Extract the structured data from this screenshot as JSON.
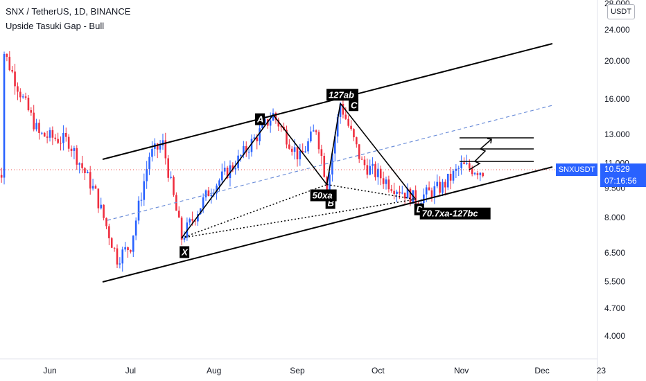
{
  "header": {
    "symbol_line": "SNX / TetherUS, 1D, BINANCE",
    "indicator_line": "Upside Tasuki Gap - Bull"
  },
  "currency_button": "USDT",
  "last_price": {
    "symbol": "SNXUSDT",
    "price": "10.529",
    "countdown": "07:16:56"
  },
  "colors": {
    "up": "#2962ff",
    "down": "#ef2e3f",
    "drawing": "#000000",
    "dashed_midline": "#6c8ed9",
    "price_line": "#ef5350",
    "tag_bg": "#2962ff"
  },
  "annotations": {
    "point_x": "X",
    "point_a": "A",
    "point_b": "B",
    "point_c": "C",
    "point_d": "D",
    "label_ab": "50xa",
    "label_bc": "127ab",
    "label_d": "70.7xa-127bc"
  },
  "chart_data": {
    "type": "candlestick",
    "title": "SNX / TetherUS, 1D, BINANCE",
    "yscale": "log",
    "y_ticks": [
      "4.000",
      "4.700",
      "5.500",
      "6.500",
      "8.000",
      "9.500",
      "11.000",
      "13.000",
      "16.000",
      "20.000",
      "24.000",
      "28.000"
    ],
    "x_ticks": [
      "Jun",
      "Jul",
      "Aug",
      "Sep",
      "Oct",
      "Nov",
      "Dec",
      "23"
    ],
    "pattern_points": [
      {
        "label": "X",
        "date": "2021-07-20",
        "price": 7.1
      },
      {
        "label": "A",
        "date": "2021-08-23",
        "price": 14.6
      },
      {
        "label": "B",
        "date": "2021-09-12",
        "price": 9.7
      },
      {
        "label": "C",
        "date": "2021-09-17",
        "price": 15.6
      },
      {
        "label": "D",
        "date": "2021-10-15",
        "price": 8.9
      }
    ]
  }
}
